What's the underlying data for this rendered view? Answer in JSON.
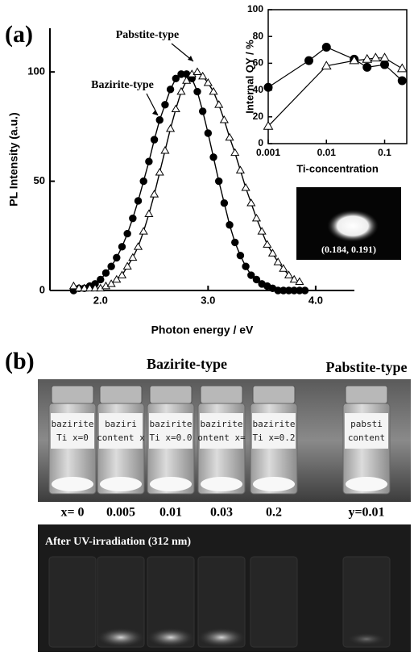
{
  "panel_a": {
    "label": "(a)"
  },
  "chart_data": [
    {
      "type": "line",
      "xlabel": "Photon energy / eV",
      "ylabel": "PL Intensity (a.u.)",
      "xlim": [
        1.53,
        4.36
      ],
      "ylim": [
        0,
        120
      ],
      "xticks": [
        {
          "value": 2,
          "label": "2.0"
        },
        {
          "value": 3,
          "label": "3.0"
        },
        {
          "value": 4,
          "label": "4.0"
        }
      ],
      "yticks": [
        0,
        50,
        100
      ],
      "series": [
        {
          "name": "Bazirite-type",
          "color": "#000000",
          "marker": "filled-circle",
          "x": [
            1.75,
            1.8,
            1.85,
            1.9,
            1.95,
            2.0,
            2.05,
            2.1,
            2.15,
            2.2,
            2.25,
            2.3,
            2.35,
            2.4,
            2.45,
            2.5,
            2.55,
            2.6,
            2.65,
            2.7,
            2.75,
            2.8,
            2.85,
            2.9,
            2.95,
            3.0,
            3.05,
            3.1,
            3.15,
            3.2,
            3.25,
            3.3,
            3.35,
            3.4,
            3.45,
            3.5,
            3.55,
            3.6,
            3.65,
            3.7,
            3.75,
            3.8,
            3.85,
            3.9
          ],
          "values": [
            0,
            1,
            1,
            2,
            3,
            5,
            8,
            11,
            15,
            20,
            26,
            33,
            41,
            50,
            59,
            69,
            78,
            85,
            92,
            97,
            99,
            99,
            97,
            91,
            82,
            72,
            61,
            50,
            40,
            30,
            22,
            16,
            11,
            7,
            5,
            3,
            2,
            1,
            0,
            0,
            0,
            0,
            0,
            0
          ]
        },
        {
          "name": "Pabstite-type",
          "color": "#000000",
          "marker": "open-triangle",
          "x": [
            1.75,
            1.8,
            1.85,
            1.9,
            1.95,
            2.0,
            2.05,
            2.1,
            2.15,
            2.2,
            2.25,
            2.3,
            2.35,
            2.4,
            2.45,
            2.5,
            2.55,
            2.6,
            2.65,
            2.7,
            2.75,
            2.8,
            2.85,
            2.9,
            2.95,
            3.0,
            3.05,
            3.1,
            3.15,
            3.2,
            3.25,
            3.3,
            3.35,
            3.4,
            3.45,
            3.5,
            3.55,
            3.6,
            3.65,
            3.7,
            3.75,
            3.8,
            3.85
          ],
          "values": [
            2,
            1,
            1,
            1,
            1,
            1,
            2,
            3,
            5,
            7,
            11,
            15,
            20,
            27,
            35,
            44,
            54,
            64,
            74,
            83,
            91,
            96,
            99,
            100,
            98,
            95,
            91,
            85,
            78,
            70,
            63,
            55,
            47,
            40,
            33,
            27,
            21,
            17,
            13,
            10,
            7,
            5,
            4
          ]
        }
      ]
    },
    {
      "type": "line",
      "xscale": "log",
      "xlabel": "Ti-concentration",
      "ylabel": "Internal QY / %",
      "xlim": [
        0.001,
        0.24
      ],
      "ylim": [
        0,
        100
      ],
      "xticks": [
        0.001,
        0.01,
        0.1
      ],
      "yticks": [
        0,
        20,
        40,
        60,
        80,
        100
      ],
      "series": [
        {
          "color": "#000000",
          "marker": "filled-circle",
          "x": [
            0.001,
            0.005,
            0.01,
            0.03,
            0.05,
            0.1,
            0.2
          ],
          "values": [
            42,
            62,
            72,
            63,
            57,
            59,
            47
          ]
        },
        {
          "color": "#000000",
          "marker": "open-triangle",
          "x": [
            0.001,
            0.01,
            0.03,
            0.05,
            0.07,
            0.1,
            0.2
          ],
          "values": [
            13,
            58,
            62,
            63,
            64,
            64,
            56
          ]
        }
      ]
    }
  ],
  "photo_a": {
    "coordinates": "(0.184, 0.191)"
  },
  "panel_b": {
    "label": "(b)",
    "group_labels": [
      "Bazirite-type",
      "Pabstite-type"
    ],
    "vial_labels": [
      [
        "bazirite",
        "Ti  x=0"
      ],
      [
        "baziri",
        "content x"
      ],
      [
        "bazirite",
        "Ti  x=0.0"
      ],
      [
        "bazirite",
        "ontent x="
      ],
      [
        "bazirite",
        "Ti  x=0.2"
      ],
      [
        "pabsti",
        "content"
      ]
    ],
    "sample_labels": [
      "x= 0",
      "0.005",
      "0.01",
      "0.03",
      "0.2",
      "y=0.01"
    ],
    "uv_caption": "After UV-irradiation (312 nm)"
  }
}
